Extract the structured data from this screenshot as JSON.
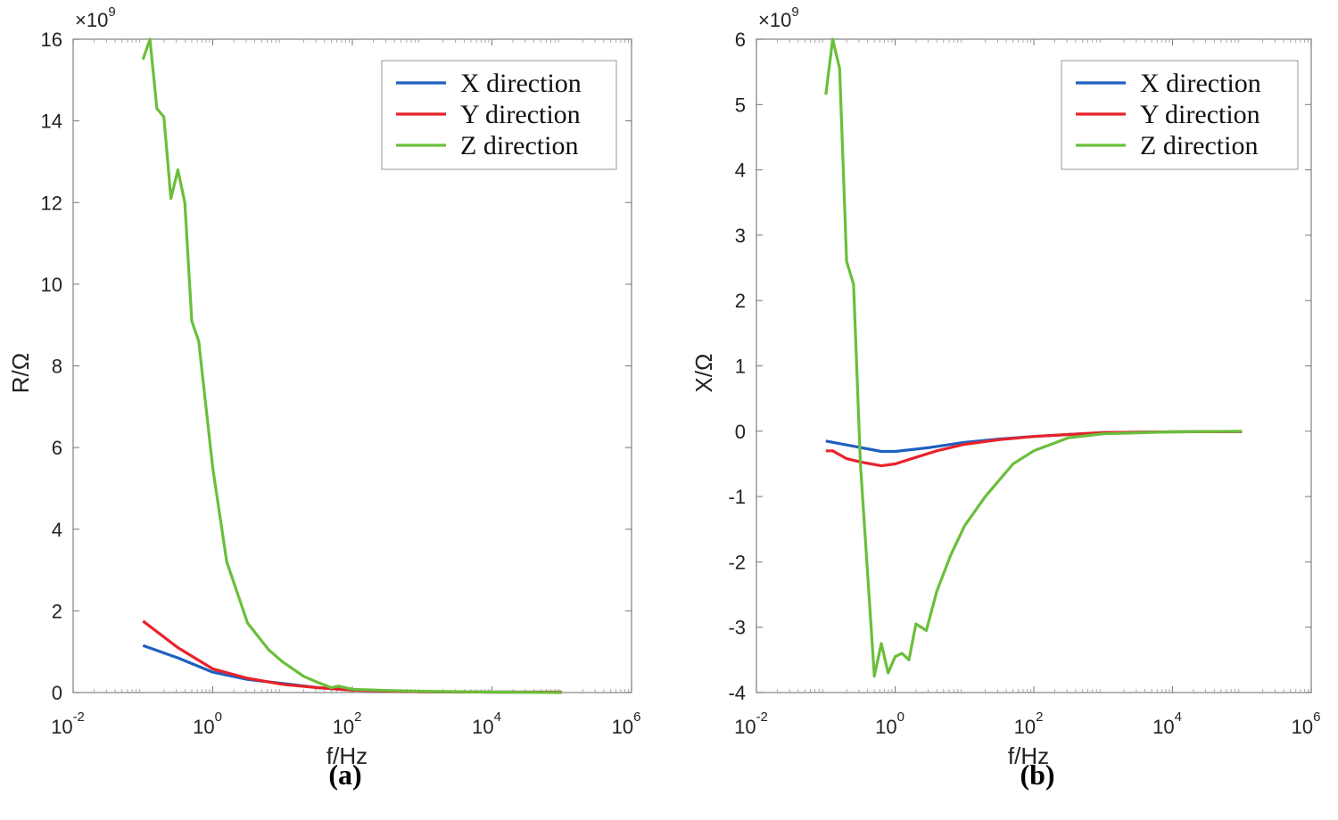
{
  "chart_data": [
    {
      "type": "line",
      "panel_label": "(a)",
      "ylabel": "R/Ω",
      "xlabel": "f/Hz",
      "xscale": "log",
      "xlim_exp": [
        -2,
        6
      ],
      "xticks_exp": [
        -2,
        0,
        2,
        4,
        6
      ],
      "xtick_base": "10",
      "ylim": [
        0,
        16
      ],
      "yticks": [
        0,
        2,
        4,
        6,
        8,
        10,
        12,
        14,
        16
      ],
      "y_multiplier": {
        "prefix": "×10",
        "exp": "9"
      },
      "legend_position": "top-right",
      "grid": false,
      "series": [
        {
          "name": "X direction",
          "color": "#1f5fbf",
          "x_exp": [
            -1,
            -0.5,
            0,
            0.5,
            1,
            1.5,
            2,
            3,
            4,
            5
          ],
          "values": [
            1.15,
            0.85,
            0.5,
            0.32,
            0.22,
            0.12,
            0.06,
            0.02,
            0.01,
            0.01
          ]
        },
        {
          "name": "Y direction",
          "color": "#e8222a",
          "x_exp": [
            -1,
            -0.5,
            0,
            0.5,
            1,
            1.5,
            2,
            3,
            4,
            5
          ],
          "values": [
            1.75,
            1.1,
            0.58,
            0.35,
            0.2,
            0.12,
            0.06,
            0.02,
            0.01,
            0.01
          ]
        },
        {
          "name": "Z direction",
          "color": "#6abf3a",
          "x_exp": [
            -1,
            -0.9,
            -0.8,
            -0.7,
            -0.6,
            -0.5,
            -0.4,
            -0.3,
            -0.2,
            0,
            0.2,
            0.5,
            0.8,
            1,
            1.3,
            1.5,
            1.7,
            1.8,
            2,
            2.5,
            3,
            4,
            5
          ],
          "values": [
            15.5,
            16.0,
            14.3,
            14.1,
            12.1,
            12.8,
            12.0,
            9.1,
            8.6,
            5.5,
            3.2,
            1.7,
            1.05,
            0.75,
            0.4,
            0.25,
            0.12,
            0.16,
            0.08,
            0.05,
            0.03,
            0.01,
            0.0
          ]
        }
      ]
    },
    {
      "type": "line",
      "panel_label": "(b)",
      "ylabel": "X/Ω",
      "xlabel": "f/Hz",
      "xscale": "log",
      "xlim_exp": [
        -2,
        6
      ],
      "xticks_exp": [
        -2,
        0,
        2,
        4,
        6
      ],
      "xtick_base": "10",
      "ylim": [
        -4,
        6
      ],
      "yticks": [
        -4,
        -3,
        -2,
        -1,
        0,
        1,
        2,
        3,
        4,
        5,
        6
      ],
      "y_multiplier": {
        "prefix": "×10",
        "exp": "9"
      },
      "legend_position": "top-right",
      "grid": false,
      "series": [
        {
          "name": "X direction",
          "color": "#1f5fbf",
          "x_exp": [
            -1,
            -0.5,
            -0.2,
            0,
            0.5,
            1,
            1.5,
            2,
            2.5,
            3,
            4,
            5
          ],
          "values": [
            -0.15,
            -0.25,
            -0.31,
            -0.31,
            -0.25,
            -0.17,
            -0.12,
            -0.08,
            -0.05,
            -0.02,
            -0.01,
            -0.005
          ]
        },
        {
          "name": "Y direction",
          "color": "#e8222a",
          "x_exp": [
            -1,
            -0.9,
            -0.7,
            -0.5,
            -0.2,
            0,
            0.3,
            0.6,
            1,
            1.5,
            2,
            2.5,
            3,
            4,
            5
          ],
          "values": [
            -0.3,
            -0.3,
            -0.42,
            -0.47,
            -0.53,
            -0.5,
            -0.4,
            -0.3,
            -0.2,
            -0.13,
            -0.08,
            -0.05,
            -0.02,
            -0.01,
            -0.005
          ]
        },
        {
          "name": "Z direction",
          "color": "#6abf3a",
          "x_exp": [
            -1,
            -0.9,
            -0.8,
            -0.7,
            -0.6,
            -0.5,
            -0.3,
            -0.2,
            -0.1,
            0,
            0.1,
            0.2,
            0.3,
            0.45,
            0.6,
            0.8,
            1,
            1.3,
            1.5,
            1.7,
            2,
            2.5,
            3,
            4,
            5
          ],
          "values": [
            5.15,
            6.0,
            5.55,
            2.6,
            2.25,
            -0.5,
            -3.75,
            -3.25,
            -3.7,
            -3.45,
            -3.4,
            -3.5,
            -2.95,
            -3.05,
            -2.45,
            -1.9,
            -1.45,
            -1.0,
            -0.75,
            -0.5,
            -0.3,
            -0.1,
            -0.04,
            -0.01,
            0.0
          ]
        }
      ]
    }
  ]
}
